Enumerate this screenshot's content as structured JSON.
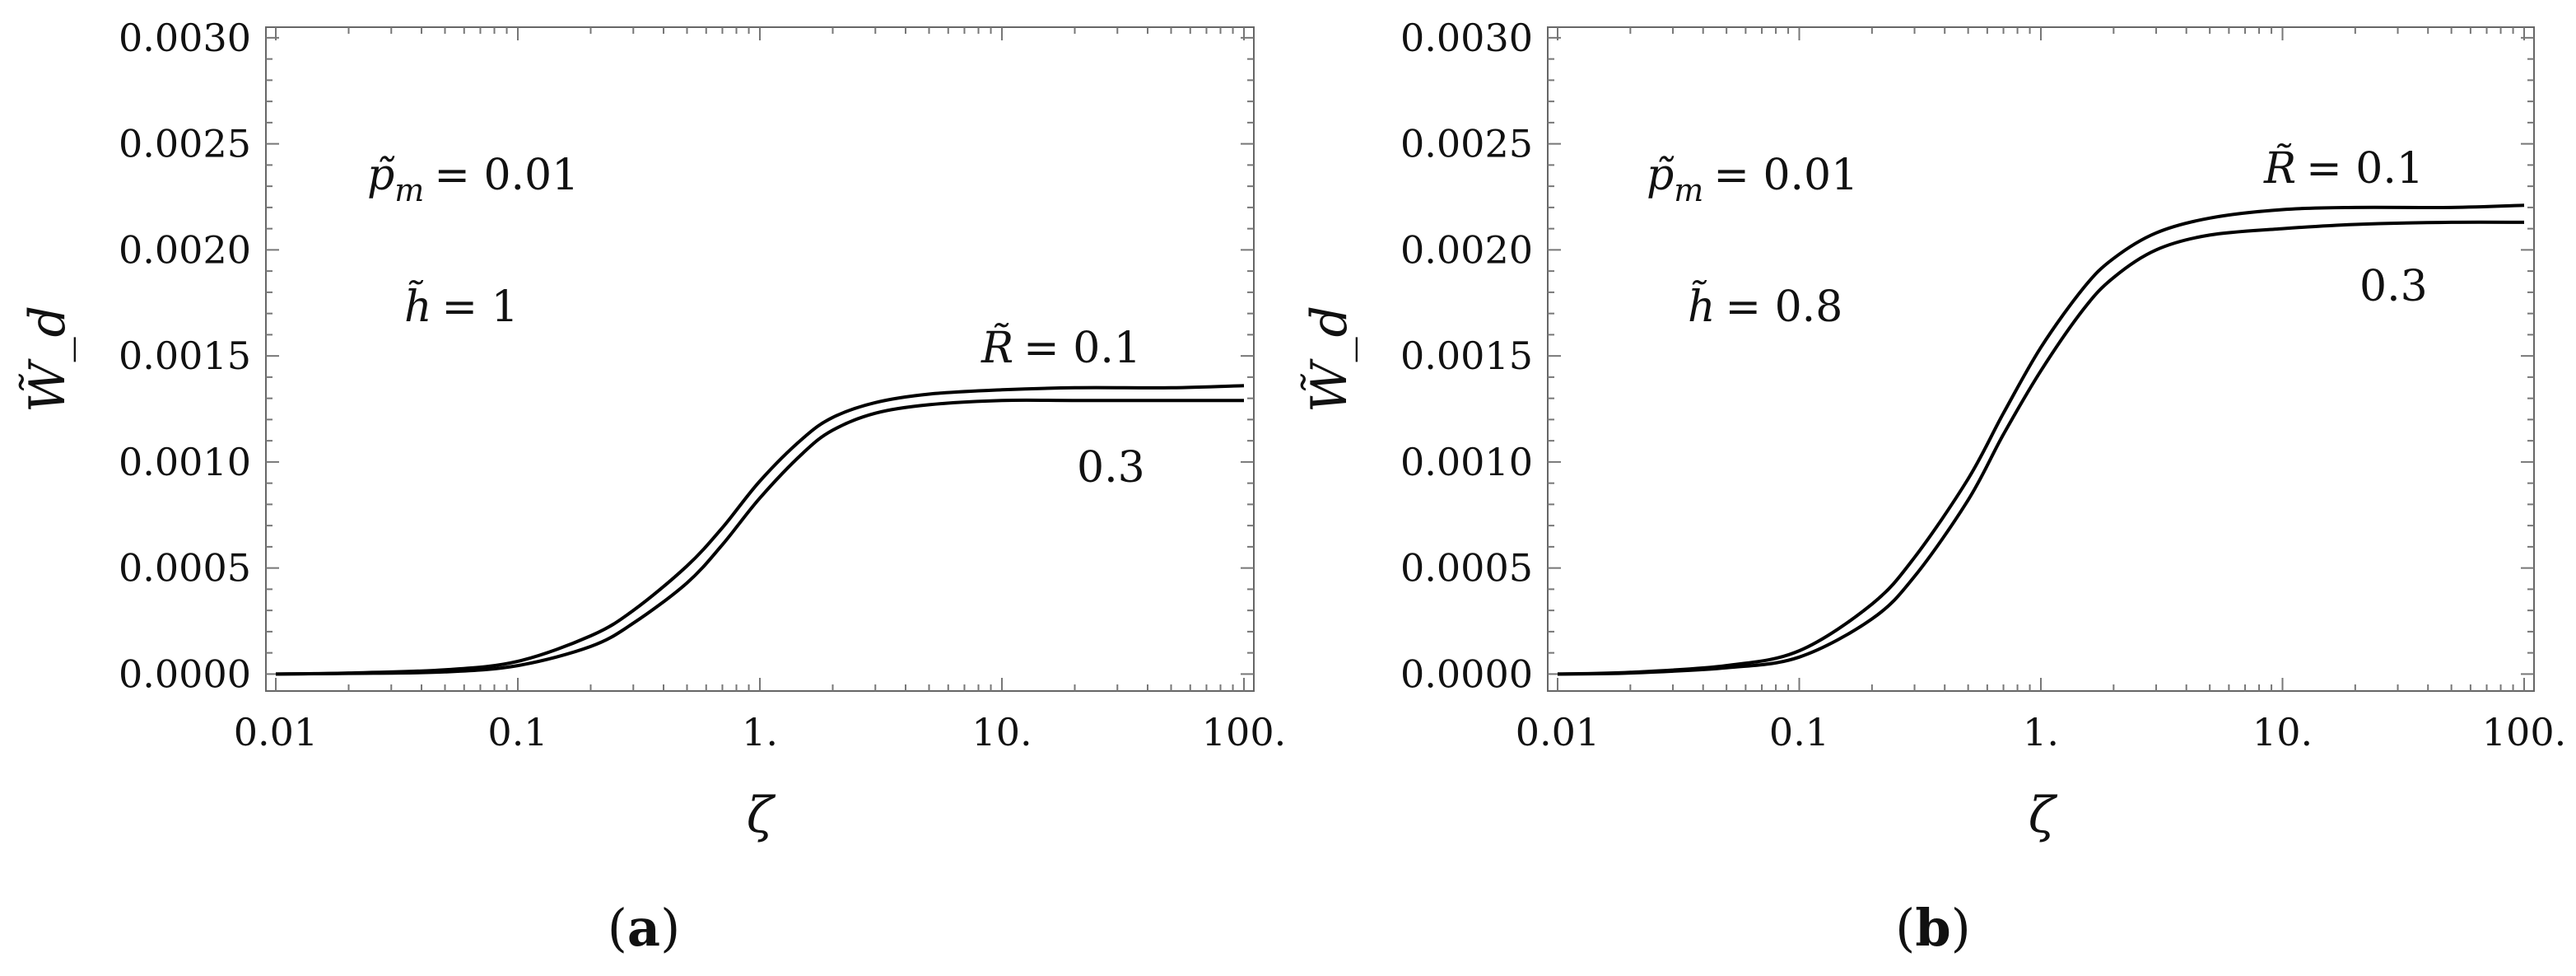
{
  "chart_data": [
    {
      "type": "line",
      "panel_label": "a",
      "xlabel": "ζ",
      "ylabel": "W̃_d",
      "x_scale": "log",
      "xlim": [
        0.01,
        100
      ],
      "ylim": [
        -8e-05,
        0.00305
      ],
      "x_ticks": [
        0.01,
        0.1,
        1,
        10,
        100
      ],
      "x_tick_labels": [
        "0.01",
        "0.1",
        "1.",
        "10.",
        "100."
      ],
      "y_ticks": [
        0.0,
        0.0005,
        0.001,
        0.0015,
        0.002,
        0.0025,
        0.003
      ],
      "y_tick_labels": [
        "0.0000",
        "0.0005",
        "0.0010",
        "0.0015",
        "0.0020",
        "0.0025",
        "0.0030"
      ],
      "annotations": [
        {
          "symbol": "p̃",
          "sub": "m",
          "value": "= 0.01"
        },
        {
          "symbol": "h̃",
          "value": "= 1"
        },
        {
          "symbol": "R̃",
          "value": "= 0.1"
        },
        {
          "text": "0.3"
        }
      ],
      "series": [
        {
          "x": [
            0.01,
            0.02,
            0.05,
            0.1,
            0.2,
            0.3,
            0.5,
            0.7,
            1,
            1.5,
            2,
            3,
            5,
            10,
            20,
            50,
            100
          ],
          "y": [
            0,
            5e-06,
            2e-05,
            6e-05,
            0.00018,
            0.0003,
            0.00051,
            0.00069,
            0.00091,
            0.00111,
            0.00121,
            0.00128,
            0.00132,
            0.00134,
            0.00135,
            0.00135,
            0.00136
          ]
        },
        {
          "x": [
            0.01,
            0.02,
            0.05,
            0.1,
            0.2,
            0.3,
            0.5,
            0.7,
            1,
            1.5,
            2,
            3,
            5,
            10,
            20,
            50,
            100
          ],
          "y": [
            0,
            3e-06,
            1e-05,
            4e-05,
            0.00013,
            0.00024,
            0.00043,
            0.00061,
            0.00083,
            0.00104,
            0.00115,
            0.00123,
            0.00127,
            0.00129,
            0.00129,
            0.00129,
            0.00129
          ]
        }
      ]
    },
    {
      "type": "line",
      "panel_label": "b",
      "xlabel": "ζ",
      "ylabel": "W̃_d",
      "x_scale": "log",
      "xlim": [
        0.01,
        100
      ],
      "ylim": [
        -8e-05,
        0.00305
      ],
      "x_ticks": [
        0.01,
        0.1,
        1,
        10,
        100
      ],
      "x_tick_labels": [
        "0.01",
        "0.1",
        "1.",
        "10.",
        "100."
      ],
      "y_ticks": [
        0.0,
        0.0005,
        0.001,
        0.0015,
        0.002,
        0.0025,
        0.003
      ],
      "y_tick_labels": [
        "0.0000",
        "0.0005",
        "0.0010",
        "0.0015",
        "0.0020",
        "0.0025",
        "0.0030"
      ],
      "annotations": [
        {
          "symbol": "p̃",
          "sub": "m",
          "value": "= 0.01"
        },
        {
          "symbol": "h̃",
          "value": "= 0.8"
        },
        {
          "symbol": "R̃",
          "value": "= 0.1"
        },
        {
          "text": "0.3"
        }
      ],
      "series": [
        {
          "x": [
            0.01,
            0.02,
            0.05,
            0.1,
            0.2,
            0.3,
            0.5,
            0.7,
            1,
            1.5,
            2,
            3,
            5,
            10,
            20,
            50,
            100
          ],
          "y": [
            0,
            8e-06,
            4e-05,
            0.00011,
            0.00033,
            0.00055,
            0.00092,
            0.00123,
            0.00154,
            0.00182,
            0.00196,
            0.00208,
            0.00215,
            0.00219,
            0.0022,
            0.0022,
            0.00221
          ]
        },
        {
          "x": [
            0.01,
            0.02,
            0.05,
            0.1,
            0.2,
            0.3,
            0.5,
            0.7,
            1,
            1.5,
            2,
            3,
            5,
            10,
            20,
            50,
            100
          ],
          "y": [
            0,
            5e-06,
            3e-05,
            8e-05,
            0.00026,
            0.00046,
            0.00082,
            0.00113,
            0.00143,
            0.00172,
            0.00187,
            0.002,
            0.00207,
            0.0021,
            0.00212,
            0.00213,
            0.00213
          ]
        }
      ]
    }
  ]
}
